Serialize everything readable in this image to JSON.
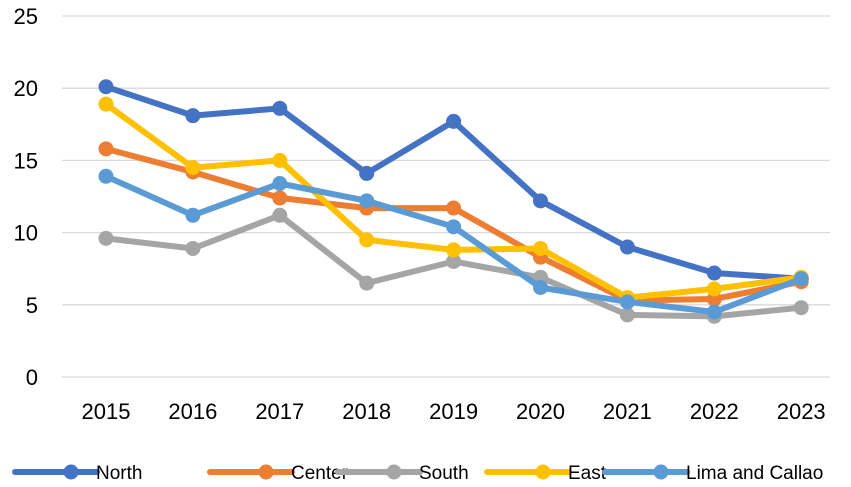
{
  "chart_data": {
    "type": "line",
    "title": "",
    "xlabel": "",
    "ylabel": "",
    "categories": [
      "2015",
      "2016",
      "2017",
      "2018",
      "2019",
      "2020",
      "2021",
      "2022",
      "2023"
    ],
    "ylim": [
      0,
      25
    ],
    "yticks": [
      0,
      5,
      10,
      15,
      20,
      25
    ],
    "grid": true,
    "legend_position": "bottom",
    "series": [
      {
        "name": "North",
        "color": "#4472C4",
        "values": [
          20.1,
          18.1,
          18.6,
          14.1,
          17.7,
          12.2,
          9.0,
          7.2,
          6.8
        ]
      },
      {
        "name": "Center",
        "color": "#ED7D31",
        "values": [
          15.8,
          14.2,
          12.4,
          11.7,
          11.7,
          8.3,
          5.3,
          5.4,
          6.6
        ]
      },
      {
        "name": "South",
        "color": "#A5A5A5",
        "values": [
          9.6,
          8.9,
          11.2,
          6.5,
          8.0,
          6.9,
          4.3,
          4.2,
          4.8
        ]
      },
      {
        "name": "East",
        "color": "#FFC000",
        "values": [
          18.9,
          14.5,
          15.0,
          9.5,
          8.8,
          8.9,
          5.5,
          6.1,
          6.9
        ]
      },
      {
        "name": "Lima and Callao",
        "color": "#5B9BD5",
        "values": [
          13.9,
          11.2,
          13.4,
          12.2,
          10.4,
          6.2,
          5.2,
          4.5,
          6.8
        ]
      }
    ]
  }
}
